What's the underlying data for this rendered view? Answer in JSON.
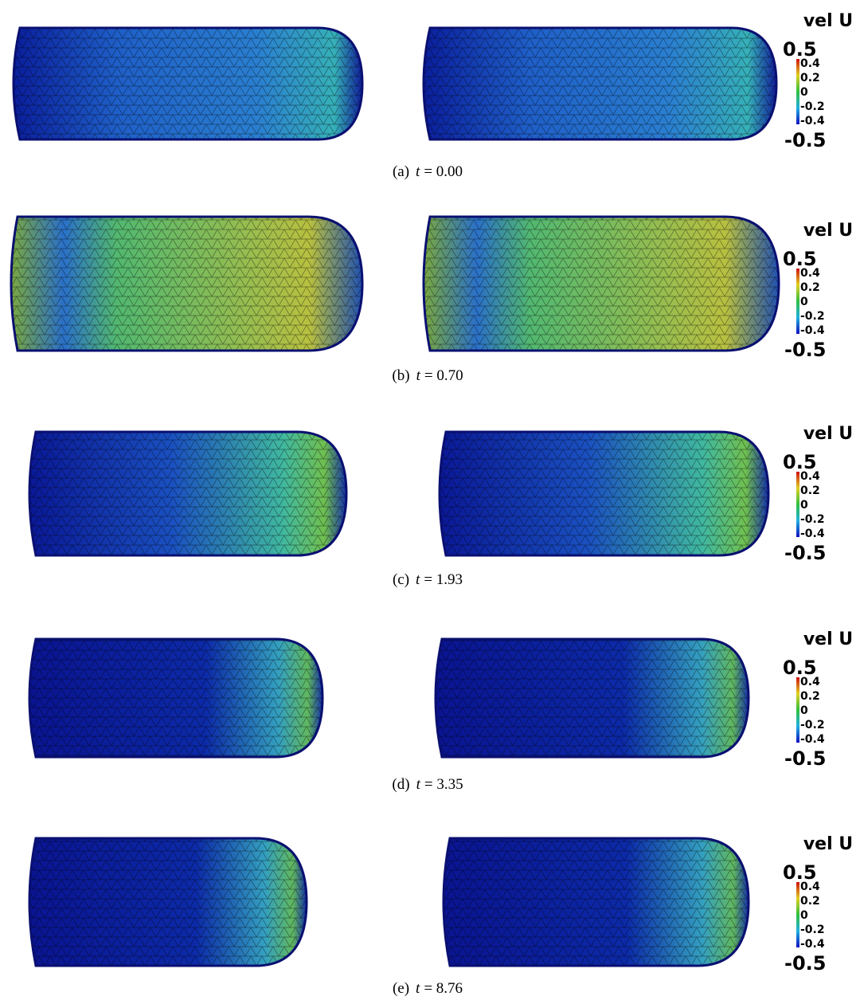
{
  "colorbar": {
    "title": "vel U",
    "max": "0.5",
    "ticks": [
      "0.4",
      "0.2",
      "0",
      "-0.2",
      "-0.4"
    ],
    "min": "-0.5"
  },
  "panels": [
    {
      "label": "(a)",
      "variable": "t",
      "equation": "= 0.00"
    },
    {
      "label": "(b)",
      "variable": "t",
      "equation": "= 0.70"
    },
    {
      "label": "(c)",
      "variable": "t",
      "equation": "= 1.93"
    },
    {
      "label": "(d)",
      "variable": "t",
      "equation": "= 3.35"
    },
    {
      "label": "(e)",
      "variable": "t",
      "equation": "= 8.76"
    }
  ]
}
